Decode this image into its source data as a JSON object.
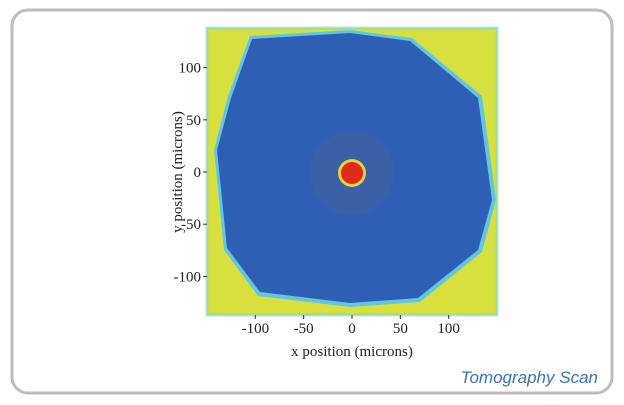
{
  "chart_data": {
    "type": "image",
    "caption": "Tomography Scan",
    "x_label": "x position (microns)",
    "y_label": "y position (microns)",
    "xlim": [
      -150,
      150
    ],
    "xticks": [
      -100,
      -50,
      0,
      50,
      100
    ],
    "ylim": [
      -137,
      138
    ],
    "yticks": [
      -100,
      -50,
      0,
      50,
      100
    ]
  }
}
